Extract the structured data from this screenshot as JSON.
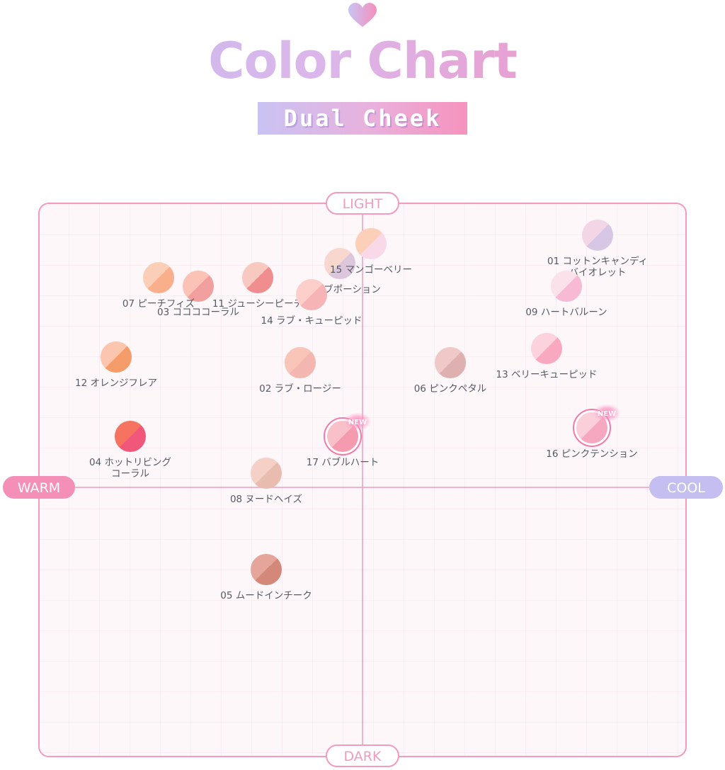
{
  "header": {
    "title": "Color Chart",
    "subtitle": "Dual Cheek"
  },
  "colors": {
    "border": "#f29bbd",
    "grid": "#f7e3ec",
    "field": "#fdf7fa",
    "warm_badge": "#f48fb8",
    "cool_badge": "#c4bff0",
    "label_text": "#555a63"
  },
  "icons": {
    "heart": "heart-icon",
    "new_badge": "new-badge"
  },
  "chart_data": {
    "type": "scatter",
    "axes": {
      "top": "LIGHT",
      "bottom": "DARK",
      "left": "WARM",
      "right": "COOL"
    },
    "xlim": [
      -1,
      1
    ],
    "ylim": [
      -1,
      1
    ],
    "grid": true,
    "new_badge_text": "NEW",
    "points": [
      {
        "label": "01 コットンキャンディ\nバイオレット",
        "x": 0.83,
        "y": 0.89,
        "colors": [
          "#f2d6e6",
          "#d8c6e6"
        ],
        "new": false
      },
      {
        "label": "02 ラブ・ロージー",
        "x": -0.22,
        "y": 0.44,
        "colors": [
          "#f9c5b8",
          "#f4b6b0"
        ],
        "new": false
      },
      {
        "label": "03 ココココーラル",
        "x": -0.58,
        "y": 0.71,
        "colors": [
          "#fac3b5",
          "#f19f9f"
        ],
        "new": false
      },
      {
        "label": "04 ホットリビング\nコーラル",
        "x": -0.82,
        "y": 0.18,
        "colors": [
          "#f6735f",
          "#f1577a"
        ],
        "new": false
      },
      {
        "label": "05 ムードインチーク",
        "x": -0.34,
        "y": -0.29,
        "colors": [
          "#e6a59b",
          "#d38879"
        ],
        "new": false
      },
      {
        "label": "06 ピンクペタル",
        "x": 0.31,
        "y": 0.44,
        "colors": [
          "#eec9c7",
          "#deb0b0"
        ],
        "new": false
      },
      {
        "label": "07 ピーチフィズ",
        "x": -0.72,
        "y": 0.74,
        "colors": [
          "#fbcfb7",
          "#f9af8c"
        ],
        "new": false
      },
      {
        "label": "08 ヌードヘイズ",
        "x": -0.34,
        "y": 0.05,
        "colors": [
          "#f5d0c6",
          "#e9bcb0"
        ],
        "new": false
      },
      {
        "label": "09 ハートバルーン",
        "x": 0.72,
        "y": 0.71,
        "colors": [
          "#fbe1ea",
          "#f7b9d3"
        ],
        "new": false
      },
      {
        "label": "10 ラブポーション",
        "x": -0.08,
        "y": 0.79,
        "colors": [
          "#f8d7cf",
          "#dcc6dc"
        ],
        "new": false
      },
      {
        "label": "11 ジューシーピーチ",
        "x": -0.37,
        "y": 0.74,
        "colors": [
          "#f8c9c1",
          "#ef8d8f"
        ],
        "new": false
      },
      {
        "label": "12 オレンジフレア",
        "x": -0.87,
        "y": 0.46,
        "colors": [
          "#fcc6ae",
          "#f49d6a"
        ],
        "new": false
      },
      {
        "label": "13 ベリーキューピッド",
        "x": 0.65,
        "y": 0.49,
        "colors": [
          "#fcd2dc",
          "#f9a9bf"
        ],
        "new": false
      },
      {
        "label": "14 ラブ・キューピッド",
        "x": -0.18,
        "y": 0.68,
        "colors": [
          "#fdcfca",
          "#f7b4b7"
        ],
        "new": false
      },
      {
        "label": "15 マンゴーベリー",
        "x": 0.03,
        "y": 0.86,
        "colors": [
          "#fccfb8",
          "#f9d8e8"
        ],
        "new": false
      },
      {
        "label": "16 ピンクテンション",
        "x": 0.81,
        "y": 0.21,
        "colors": [
          "#fbcfd9",
          "#f6a8c0"
        ],
        "new": true
      },
      {
        "label": "17 バブルハート",
        "x": -0.07,
        "y": 0.18,
        "colors": [
          "#f9c0c9",
          "#f49bb0"
        ],
        "new": true
      }
    ]
  }
}
